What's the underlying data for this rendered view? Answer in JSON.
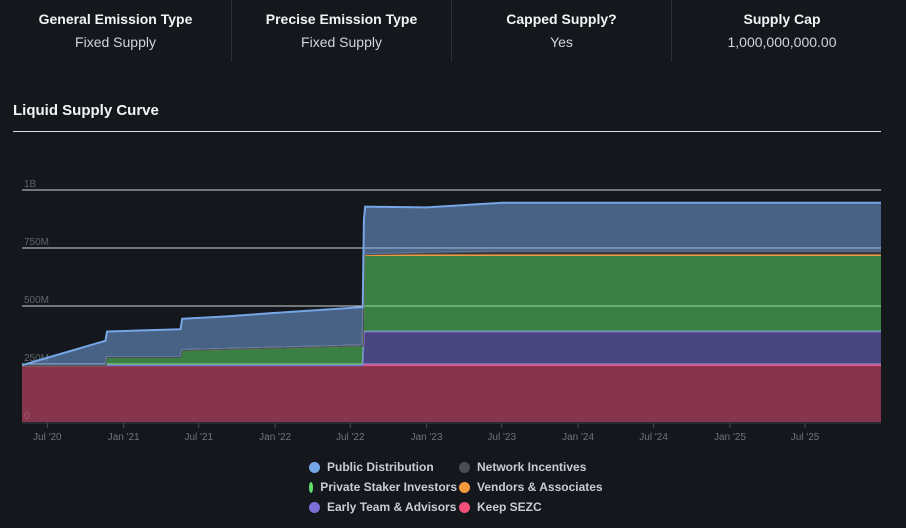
{
  "stats": [
    {
      "label": "General Emission Type",
      "value": "Fixed Supply"
    },
    {
      "label": "Precise Emission Type",
      "value": "Fixed Supply"
    },
    {
      "label": "Capped Supply?",
      "value": "Yes"
    },
    {
      "label": "Supply Cap",
      "value": "1,000,000,000.00"
    }
  ],
  "chart_title": "Liquid Supply Curve",
  "chart_data": {
    "type": "area",
    "stacked": true,
    "title": "Liquid Supply Curve",
    "xlabel": "",
    "ylabel": "",
    "x_ticks": [
      "Jul '20",
      "Jan '21",
      "Jul '21",
      "Jan '22",
      "Jul '22",
      "Jan '23",
      "Jul '23",
      "Jan '24",
      "Jul '24",
      "Jan '25",
      "Jul '25"
    ],
    "y_ticks": [
      "0",
      "250M",
      "500M",
      "750M",
      "1B"
    ],
    "ylim": [
      0,
      1000000000
    ],
    "x_range": [
      "2020-05-01",
      "2025-12-31"
    ],
    "grid": true,
    "legend_position": "bottom",
    "series": [
      {
        "name": "Keep SEZC",
        "color": "#f0507a",
        "points": [
          [
            "2020-05-01",
            245000000
          ],
          [
            "2025-12-31",
            245000000
          ]
        ]
      },
      {
        "name": "Early Team & Advisors",
        "color": "#7b6fd8",
        "points": [
          [
            "2020-05-01",
            0
          ],
          [
            "2022-07-31",
            0
          ],
          [
            "2022-08-03",
            145000000
          ],
          [
            "2025-12-31",
            145000000
          ]
        ]
      },
      {
        "name": "Private Staker Investors",
        "color": "#5ee06a",
        "points": [
          [
            "2020-05-01",
            0
          ],
          [
            "2020-11-18",
            0
          ],
          [
            "2020-11-22",
            35000000
          ],
          [
            "2021-05-18",
            35000000
          ],
          [
            "2021-05-22",
            65000000
          ],
          [
            "2022-07-31",
            85000000
          ],
          [
            "2022-08-03",
            330000000
          ],
          [
            "2025-12-31",
            330000000
          ]
        ]
      },
      {
        "name": "Vendors & Associates",
        "color": "#f39a3c",
        "points": [
          [
            "2020-05-01",
            0
          ],
          [
            "2025-12-31",
            0
          ]
        ]
      },
      {
        "name": "Network Incentives",
        "color": "#4a4d52",
        "points": [
          [
            "2020-05-01",
            0
          ],
          [
            "2022-07-31",
            0
          ],
          [
            "2022-08-03",
            3000000
          ],
          [
            "2023-01-01",
            10000000
          ],
          [
            "2023-07-01",
            15000000
          ],
          [
            "2024-01-01",
            15000000
          ],
          [
            "2025-12-31",
            15000000
          ]
        ]
      },
      {
        "name": "Public Distribution",
        "color": "#76a6e6",
        "points": [
          [
            "2020-05-01",
            0
          ],
          [
            "2020-11-18",
            105000000
          ],
          [
            "2020-11-22",
            110000000
          ],
          [
            "2021-05-18",
            120000000
          ],
          [
            "2021-05-22",
            135000000
          ],
          [
            "2021-09-01",
            140000000
          ],
          [
            "2022-01-01",
            150000000
          ],
          [
            "2022-07-31",
            165000000
          ],
          [
            "2022-08-03",
            150000000
          ],
          [
            "2022-08-06",
            205000000
          ],
          [
            "2023-01-01",
            195000000
          ],
          [
            "2023-07-01",
            210000000
          ],
          [
            "2024-01-01",
            210000000
          ],
          [
            "2025-12-31",
            210000000
          ]
        ]
      }
    ]
  },
  "legend": [
    {
      "name": "Public Distribution",
      "color": "#76a6e6"
    },
    {
      "name": "Network Incentives",
      "color": "#4a4d52"
    },
    {
      "name": "Private Staker Investors",
      "color": "#5ee06a"
    },
    {
      "name": "Vendors & Associates",
      "color": "#f39a3c"
    },
    {
      "name": "Early Team & Advisors",
      "color": "#7b6fd8"
    },
    {
      "name": "Keep SEZC",
      "color": "#f0507a"
    }
  ]
}
